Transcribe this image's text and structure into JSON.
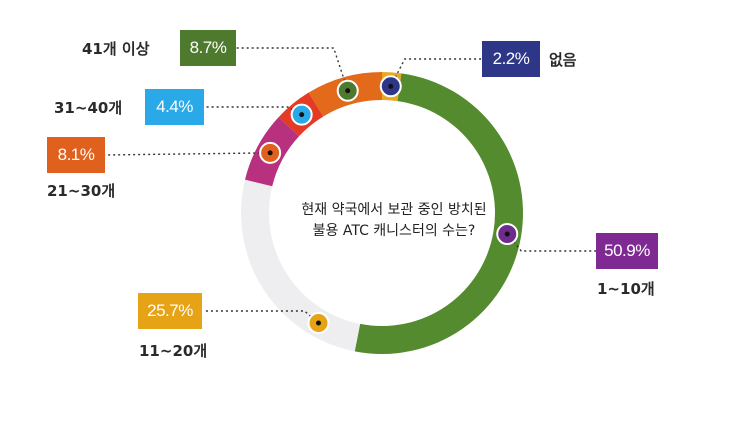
{
  "chart_data": {
    "type": "pie",
    "variant": "donut",
    "title": "현재 약국에서 보관 중인 방치된 불용 ATC 캐니스터의 수는?",
    "title_lines": [
      "현재 약국에서 보관 중인 방치된",
      "불용 ATC 캐니스터의 수는?"
    ],
    "categories": [
      "없음",
      "1~10개",
      "11~20개",
      "21~30개",
      "31~40개",
      "41개 이상"
    ],
    "values": [
      2.2,
      50.9,
      25.7,
      8.1,
      4.4,
      8.7
    ],
    "value_labels": [
      "2.2%",
      "50.9%",
      "25.7%",
      "8.1%",
      "4.4%",
      "8.7%"
    ],
    "colors": [
      "#E8A820",
      "#558B2F",
      "#EEEEF1",
      "#B7317F",
      "#E53A23",
      "#E36A1B"
    ],
    "badge_colors": [
      "#2E3787",
      "#7F2A93",
      "#E6A316",
      "#E0601E",
      "#29A9E8",
      "#4E7A2E"
    ],
    "dot_colors": [
      "#2E3787",
      "#6E2C8C",
      "#E6A316",
      "#E0601E",
      "#29A9E8",
      "#4E7A2E"
    ],
    "legend_placement": "around"
  }
}
